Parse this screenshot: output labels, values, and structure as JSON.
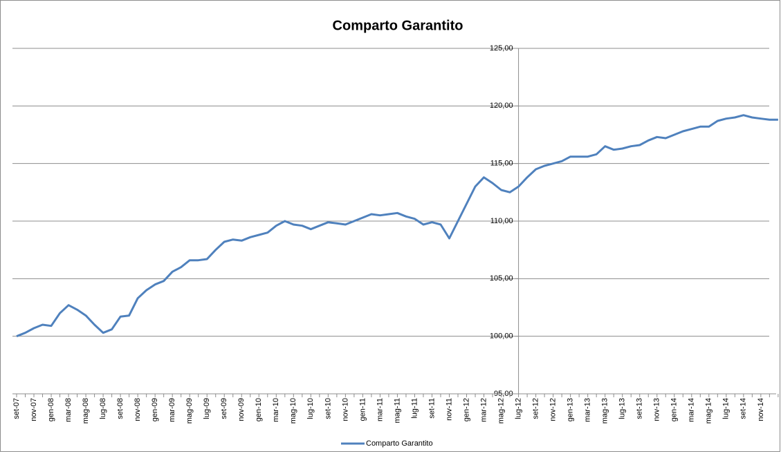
{
  "chart_data": {
    "type": "line",
    "title": "Comparto Garantito",
    "x": [
      "set-07",
      null,
      "nov-07",
      null,
      "gen-08",
      null,
      "mar-08",
      null,
      "mag-08",
      null,
      "lug-08",
      null,
      "set-08",
      null,
      "nov-08",
      null,
      "gen-09",
      null,
      "mar-09",
      null,
      "mag-09",
      null,
      "lug-09",
      null,
      "set-09",
      null,
      "nov-09",
      null,
      "gen-10",
      null,
      "mar-10",
      null,
      "mag-10",
      null,
      "lug-10",
      null,
      "set-10",
      null,
      "nov-10",
      null,
      "gen-11",
      null,
      "mar-11",
      null,
      "mag-11",
      null,
      "lug-11",
      null,
      "set-11",
      null,
      "nov-11",
      null,
      "gen-12",
      null,
      "mar-12",
      null,
      "mag-12",
      null,
      "lug-12",
      null,
      "set-12",
      null,
      "nov-12",
      null,
      "gen-13",
      null,
      "mar-13",
      null,
      "mag-13",
      null,
      "lug-13",
      null,
      "set-13",
      null,
      "nov-13",
      null,
      "gen-14",
      null,
      "mar-14",
      null,
      "mag-14",
      null,
      "lug-14",
      null,
      "set-14",
      null,
      "nov-14",
      null,
      null
    ],
    "series": [
      {
        "name": "Comparto Garantito",
        "color": "#4f81bd",
        "values": [
          100.0,
          100.3,
          100.7,
          101.0,
          100.9,
          102.0,
          102.7,
          102.3,
          101.8,
          101.0,
          100.3,
          100.6,
          101.7,
          101.8,
          103.3,
          104.0,
          104.5,
          104.8,
          105.6,
          106.0,
          106.6,
          106.6,
          106.7,
          107.5,
          108.2,
          108.4,
          108.3,
          108.6,
          108.8,
          109.0,
          109.6,
          110.0,
          109.7,
          109.6,
          109.3,
          109.6,
          109.9,
          109.8,
          109.7,
          110.0,
          110.3,
          110.6,
          110.5,
          110.6,
          110.7,
          110.4,
          110.2,
          109.7,
          109.9,
          109.7,
          108.5,
          110.0,
          111.5,
          113.0,
          113.8,
          113.3,
          112.7,
          112.5,
          113.0,
          113.8,
          114.5,
          114.8,
          115.0,
          115.2,
          115.6,
          115.6,
          115.6,
          115.8,
          116.5,
          116.2,
          116.3,
          116.5,
          116.6,
          117.0,
          117.3,
          117.2,
          117.5,
          117.8,
          118.0,
          118.2,
          118.2,
          118.7,
          118.9,
          119.0,
          119.2,
          119.0,
          118.9,
          118.8,
          118.8
        ]
      }
    ],
    "ylim": [
      95,
      125
    ],
    "yticks": [
      {
        "value": 95,
        "label": "95,00"
      },
      {
        "value": 100,
        "label": "100,00"
      },
      {
        "value": 105,
        "label": "105,00"
      },
      {
        "value": 110,
        "label": "110,00"
      },
      {
        "value": 115,
        "label": "115,00"
      },
      {
        "value": 120,
        "label": "120,00"
      },
      {
        "value": 125,
        "label": "125,00"
      }
    ],
    "grid": true,
    "legend": "bottom"
  }
}
